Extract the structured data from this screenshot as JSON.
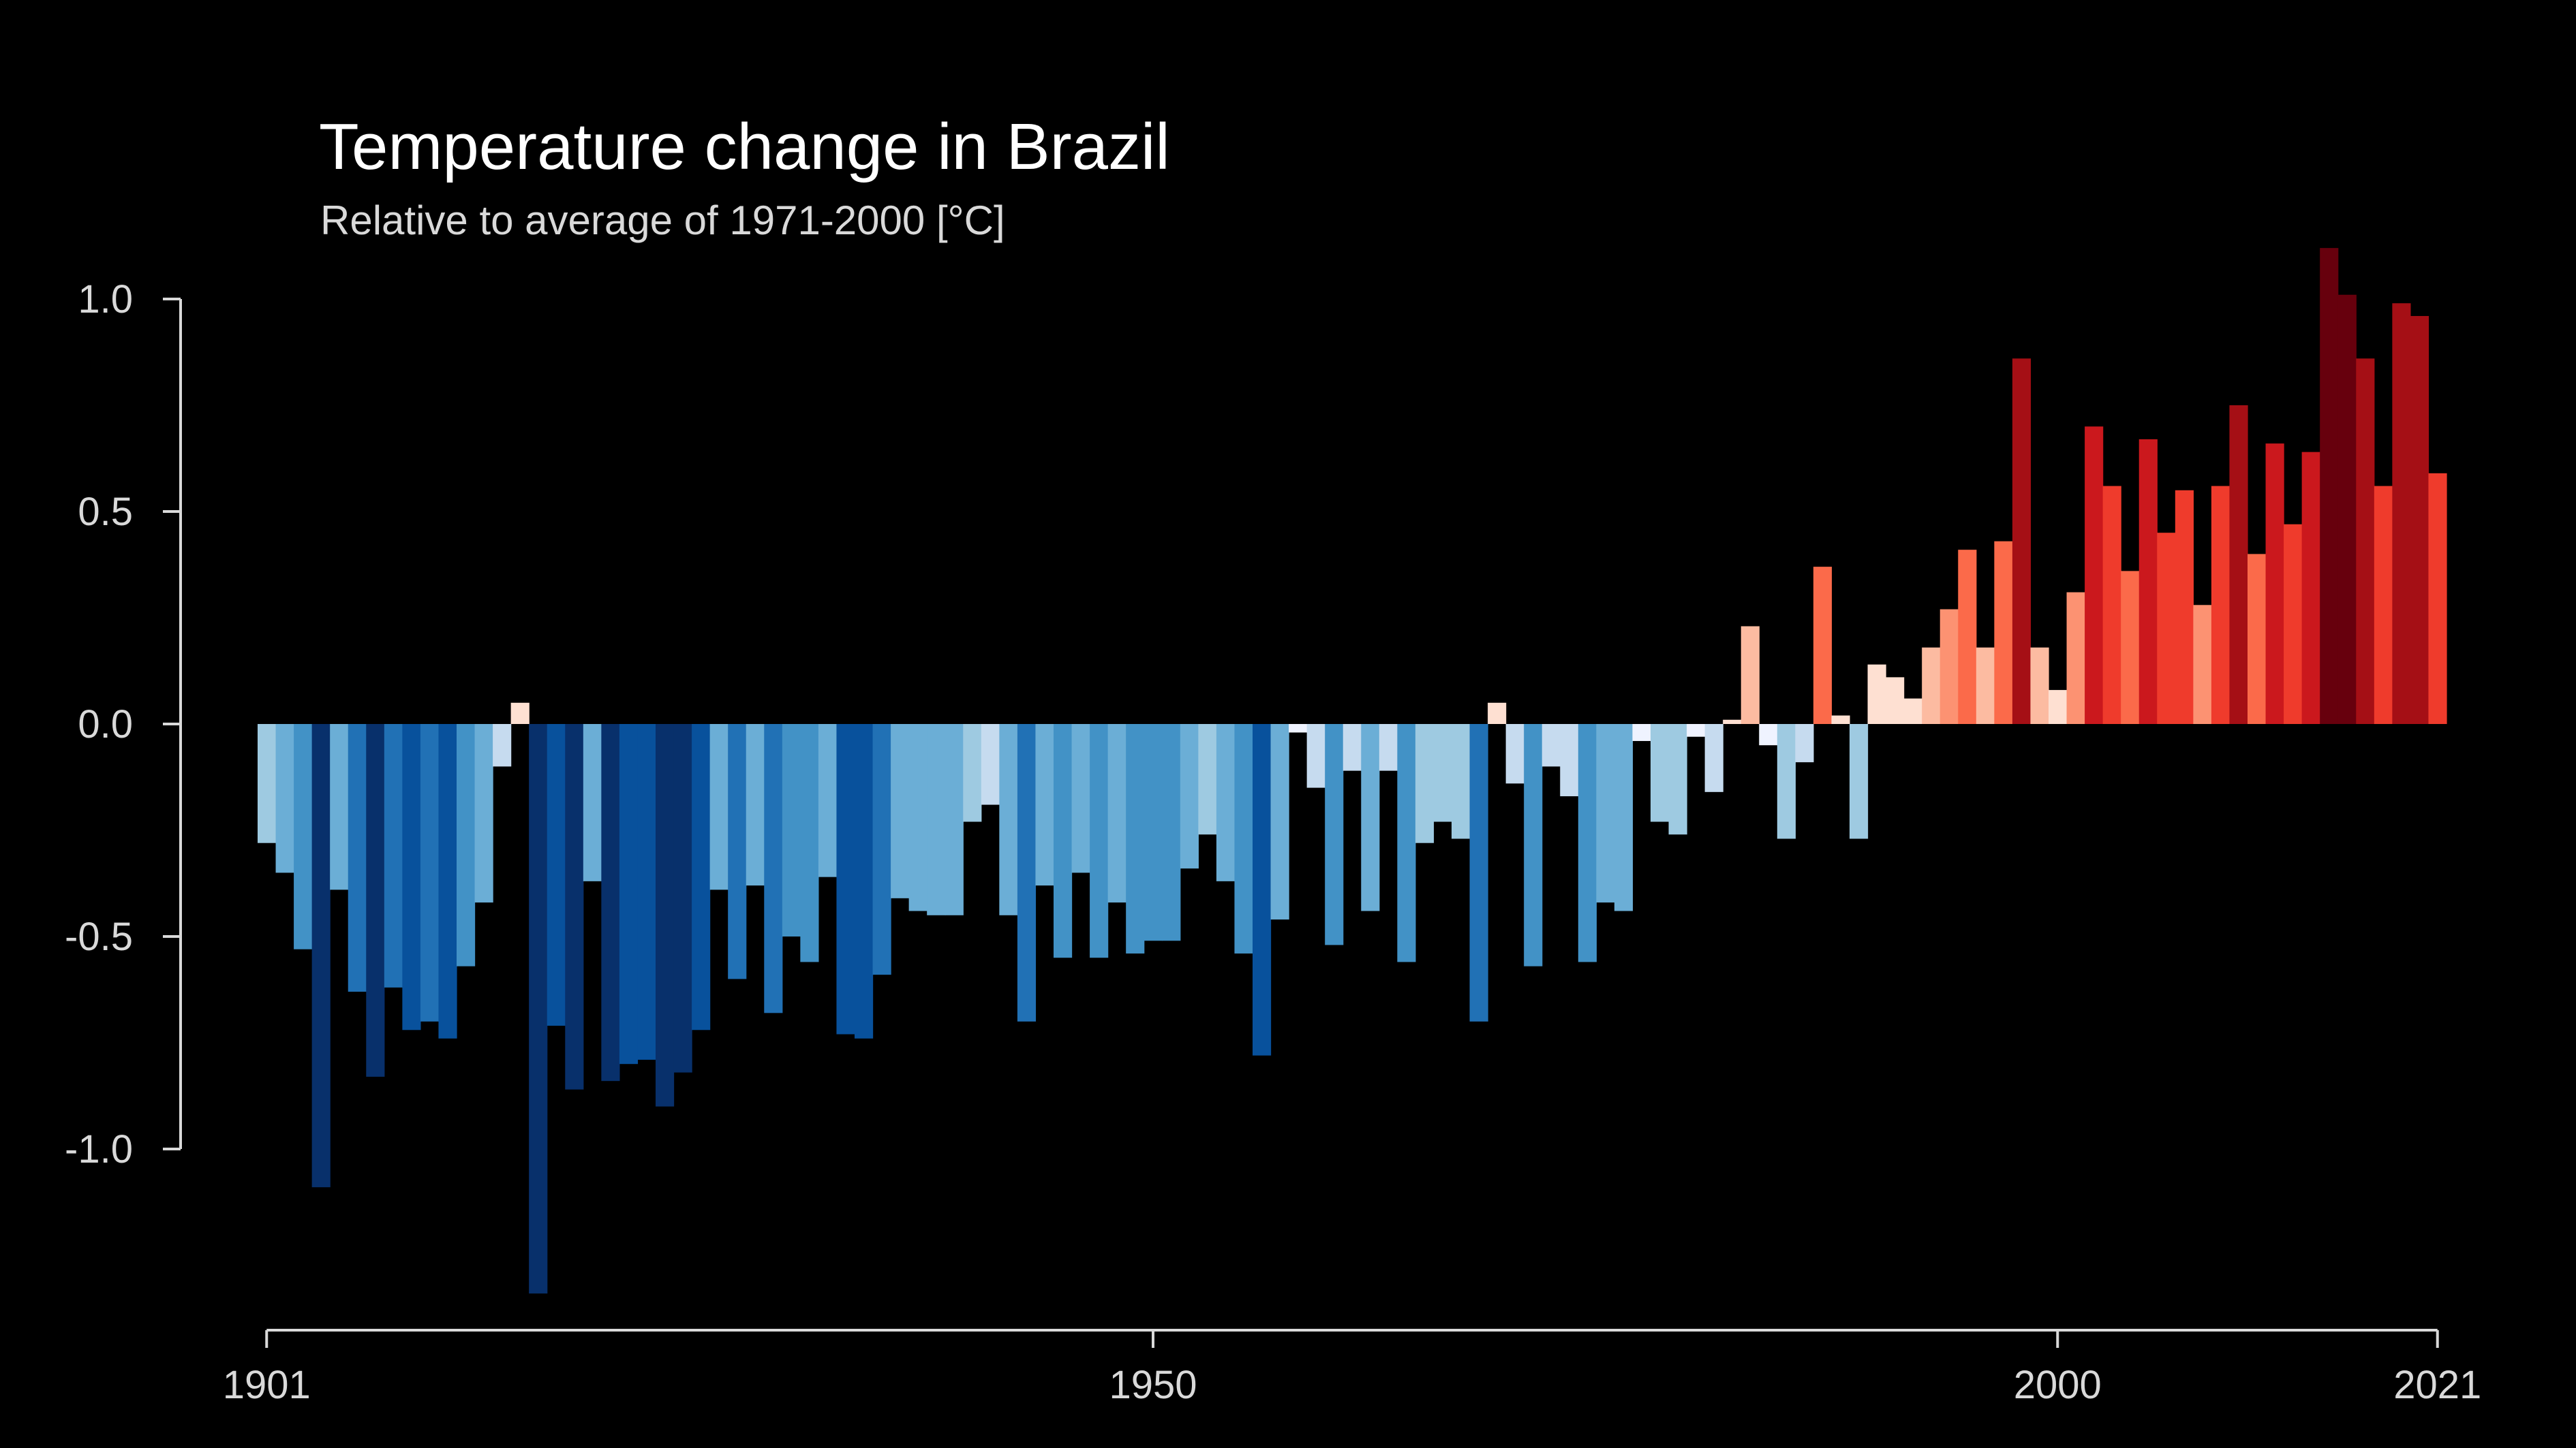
{
  "chart_data": {
    "type": "bar",
    "title": "Temperature change in Brazil",
    "subtitle": "Relative to average of 1971-2000  [°C]",
    "xlabel": "",
    "ylabel": "",
    "x_start": 1901,
    "x_end": 2021,
    "xlim": [
      1901,
      2021
    ],
    "ylim": [
      -1.4,
      1.2
    ],
    "x_ticks": [
      1901,
      1950,
      2000,
      2021
    ],
    "x_tick_labels": [
      "1901",
      "1950",
      "2000",
      "2021"
    ],
    "y_ticks": [
      1.0,
      0.5,
      0.0,
      -0.5,
      -1.0
    ],
    "y_tick_labels": [
      "1.0",
      "0.5",
      "0.0",
      "-0.5",
      "-1.0"
    ],
    "grid": false,
    "legend": "none",
    "background": "#000000",
    "colormap": "RdBu (blue = colder, red = warmer)",
    "years": [
      1901,
      1902,
      1903,
      1904,
      1905,
      1906,
      1907,
      1908,
      1909,
      1910,
      1911,
      1912,
      1913,
      1914,
      1915,
      1916,
      1917,
      1918,
      1919,
      1920,
      1921,
      1922,
      1923,
      1924,
      1925,
      1926,
      1927,
      1928,
      1929,
      1930,
      1931,
      1932,
      1933,
      1934,
      1935,
      1936,
      1937,
      1938,
      1939,
      1940,
      1941,
      1942,
      1943,
      1944,
      1945,
      1946,
      1947,
      1948,
      1949,
      1950,
      1951,
      1952,
      1953,
      1954,
      1955,
      1956,
      1957,
      1958,
      1959,
      1960,
      1961,
      1962,
      1963,
      1964,
      1965,
      1966,
      1967,
      1968,
      1969,
      1970,
      1971,
      1972,
      1973,
      1974,
      1975,
      1976,
      1977,
      1978,
      1979,
      1980,
      1981,
      1982,
      1983,
      1984,
      1985,
      1986,
      1987,
      1988,
      1989,
      1990,
      1991,
      1992,
      1993,
      1994,
      1995,
      1996,
      1997,
      1998,
      1999,
      2000,
      2001,
      2002,
      2003,
      2004,
      2005,
      2006,
      2007,
      2008,
      2009,
      2010,
      2011,
      2012,
      2013,
      2014,
      2015,
      2016,
      2017,
      2018,
      2019,
      2020,
      2021
    ],
    "values": [
      -0.28,
      -0.35,
      -0.53,
      -1.09,
      -0.39,
      -0.63,
      -0.83,
      -0.62,
      -0.72,
      -0.7,
      -0.74,
      -0.57,
      -0.42,
      -0.1,
      0.05,
      -1.34,
      -0.71,
      -0.86,
      -0.37,
      -0.84,
      -0.8,
      -0.79,
      -0.9,
      -0.82,
      -0.72,
      -0.39,
      -0.6,
      -0.38,
      -0.68,
      -0.5,
      -0.56,
      -0.36,
      -0.73,
      -0.74,
      -0.59,
      -0.41,
      -0.44,
      -0.45,
      -0.45,
      -0.23,
      -0.19,
      -0.45,
      -0.7,
      -0.38,
      -0.55,
      -0.35,
      -0.55,
      -0.42,
      -0.54,
      -0.51,
      -0.51,
      -0.34,
      -0.26,
      -0.37,
      -0.54,
      -0.78,
      -0.46,
      -0.02,
      -0.15,
      -0.52,
      -0.11,
      -0.44,
      -0.11,
      -0.56,
      -0.28,
      -0.23,
      -0.27,
      -0.7,
      0.05,
      -0.14,
      -0.57,
      -0.1,
      -0.17,
      -0.56,
      -0.42,
      -0.44,
      -0.04,
      -0.23,
      -0.26,
      -0.03,
      -0.16,
      0.01,
      0.23,
      -0.05,
      -0.27,
      -0.09,
      0.37,
      0.02,
      -0.27,
      0.14,
      0.11,
      0.06,
      0.18,
      0.27,
      0.41,
      0.18,
      0.43,
      0.86,
      0.18,
      0.08,
      0.31,
      0.7,
      0.56,
      0.36,
      0.67,
      0.45,
      0.55,
      0.28,
      0.56,
      0.75,
      0.4,
      0.66,
      0.47,
      0.64,
      1.12,
      1.01,
      0.86,
      0.56,
      0.99,
      0.96,
      0.59
    ]
  }
}
